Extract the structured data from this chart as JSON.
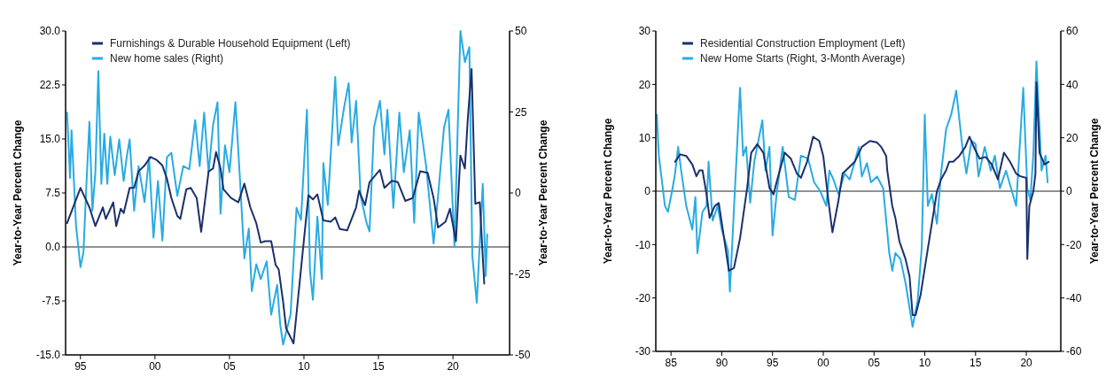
{
  "chart_data": [
    {
      "type": "line",
      "ylabel": "Year-to-Year Percent Change",
      "y2label": "Year-to-Year Percent Change",
      "legend": "top left",
      "grid": false,
      "xlim": [
        1994,
        2023.8
      ],
      "xticks": [
        {
          "value": 1995,
          "label": "95"
        },
        {
          "value": 2000,
          "label": "00"
        },
        {
          "value": 2005,
          "label": "05"
        },
        {
          "value": 2010,
          "label": "10"
        },
        {
          "value": 2015,
          "label": "15"
        },
        {
          "value": 2020,
          "label": "20"
        }
      ],
      "ylim": [
        -15,
        30
      ],
      "yticks": [
        {
          "value": -15,
          "label": "-15.0"
        },
        {
          "value": -7.5,
          "label": "-7.5"
        },
        {
          "value": 0,
          "label": "0.0"
        },
        {
          "value": 7.5,
          "label": "7.5"
        },
        {
          "value": 15,
          "label": "15.0"
        },
        {
          "value": 22.5,
          "label": "22.5"
        },
        {
          "value": 30,
          "label": "30.0"
        }
      ],
      "y2lim": [
        -50,
        50
      ],
      "y2ticks": [
        -50,
        -25,
        0,
        25,
        50
      ],
      "ref_lines": [
        {
          "axis": "y",
          "value": 0,
          "color": "#222222"
        }
      ],
      "series": [
        {
          "name": "New home sales (Right)",
          "color": "#29abe2",
          "axis": "y2",
          "x": [
            1994.1,
            1994.3,
            1994.4,
            1994.7,
            1995.0,
            1995.2,
            1995.4,
            1995.6,
            1995.8,
            1996.0,
            1996.2,
            1996.4,
            1996.6,
            1996.8,
            1997.0,
            1997.3,
            1997.6,
            1997.9,
            1998.1,
            1998.3,
            1998.6,
            1998.9,
            1999.3,
            1999.6,
            1999.9,
            2000.2,
            2000.5,
            2000.8,
            2001.1,
            2001.5,
            2001.9,
            2002.3,
            2002.7,
            2003.0,
            2003.3,
            2003.6,
            2003.9,
            2004.2,
            2004.4,
            2004.7,
            2005.0,
            2005.4,
            2005.7,
            2006.0,
            2006.3,
            2006.5,
            2006.8,
            2007.1,
            2007.5,
            2007.8,
            2008.2,
            2008.4,
            2008.6,
            2009.1,
            2009.5,
            2009.8,
            2010.2,
            2010.4,
            2010.6,
            2010.9,
            2011.2,
            2011.3,
            2011.6,
            2012.1,
            2012.3,
            2012.7,
            2013.0,
            2013.2,
            2013.5,
            2013.8,
            2014.2,
            2014.4,
            2014.7,
            2015.1,
            2015.4,
            2015.6,
            2016.0,
            2016.4,
            2016.7,
            2017.1,
            2017.4,
            2017.7,
            2018.2,
            2018.7,
            2019.0,
            2019.4,
            2019.7,
            2020.1,
            2020.5,
            2020.8,
            2021.1,
            2021.3,
            2021.6,
            2022.0,
            2022.2,
            2022.3
          ],
          "values": [
            24.8,
            4.6,
            19.3,
            -10,
            -22.9,
            -18.3,
            2.8,
            22,
            -5.5,
            6.4,
            37.6,
            2.8,
            18.3,
            2.8,
            17.4,
            5.5,
            16.5,
            3.7,
            11,
            16.5,
            -5.5,
            8.3,
            -2.8,
            11,
            -13.8,
            3.7,
            -14.7,
            11,
            12.4,
            -0.9,
            8.3,
            7.3,
            22.5,
            8.3,
            24.8,
            6.4,
            21.1,
            28,
            -6.4,
            14.7,
            6.4,
            28,
            4.6,
            -20.2,
            -11,
            -30.3,
            -22,
            -26.6,
            -21.1,
            -37.6,
            -28.4,
            -40.4,
            -46.8,
            -37.6,
            -4.6,
            -8.3,
            25.7,
            -23.9,
            -33,
            -7.3,
            -26.6,
            9.2,
            -3.7,
            35.8,
            14.7,
            26.6,
            33.9,
            15.6,
            28.4,
            -0.9,
            -9.2,
            -11.9,
            20.2,
            28.4,
            11.9,
            25.7,
            -4.6,
            24.8,
            6.4,
            19.3,
            -9.2,
            24.8,
            8.3,
            -15.6,
            -0.9,
            20.2,
            25.7,
            -16.5,
            50,
            40.4,
            45,
            -19.3,
            -33.9,
            2.8,
            -25.7,
            -12.8
          ]
        },
        {
          "name": "Furnishings & Durable Household Equipment (Left)",
          "color": "#1b2f6b",
          "x": [
            1994.1,
            1995.0,
            1995.6,
            1996.0,
            1996.5,
            1996.7,
            1997.2,
            1997.4,
            1997.7,
            1997.9,
            1998.3,
            1998.6,
            1998.9,
            1999.3,
            1999.7,
            2000.1,
            2000.5,
            2000.8,
            2001.1,
            2001.5,
            2001.7,
            2002.1,
            2002.4,
            2002.8,
            2003.1,
            2003.6,
            2003.9,
            2004.1,
            2004.4,
            2004.6,
            2005.1,
            2005.6,
            2006.0,
            2006.4,
            2006.8,
            2007.1,
            2007.4,
            2007.8,
            2008.1,
            2008.3,
            2008.6,
            2008.8,
            2009.3,
            2009.8,
            2010.3,
            2010.6,
            2010.9,
            2011.3,
            2011.8,
            2012.1,
            2012.4,
            2012.9,
            2013.5,
            2013.7,
            2014.1,
            2014.4,
            2015.1,
            2015.4,
            2015.9,
            2016.3,
            2016.8,
            2017.3,
            2017.8,
            2018.3,
            2018.7,
            2019.0,
            2019.5,
            2019.8,
            2020.2,
            2020.5,
            2020.8,
            2021.0,
            2021.25,
            2021.5,
            2021.8,
            2022.1
          ],
          "values": [
            3.3,
            8.2,
            5.5,
            2.9,
            5.5,
            3.9,
            6.2,
            2.9,
            5.3,
            4.7,
            8.2,
            8.2,
            10.5,
            11.3,
            12.5,
            12.1,
            11.3,
            9.5,
            6.8,
            4.3,
            3.9,
            8.0,
            8.2,
            6.8,
            2.1,
            10.5,
            10.9,
            13.2,
            10.9,
            8.0,
            6.8,
            6.2,
            8.8,
            5.5,
            3.3,
            0.6,
            0.8,
            0.8,
            -2.5,
            -3.1,
            -7.6,
            -11.3,
            -13.4,
            -3.1,
            7.2,
            6.6,
            7.3,
            3.7,
            3.5,
            4.1,
            2.5,
            2.3,
            5.5,
            7.8,
            5.8,
            9.0,
            10.7,
            8.2,
            9.2,
            9.0,
            6.4,
            6.8,
            10.5,
            10.3,
            6.8,
            2.7,
            3.5,
            5.3,
            0.8,
            12.7,
            10.9,
            17.9,
            24.7,
            6.0,
            6.2,
            -5.1
          ]
        }
      ]
    },
    {
      "type": "line",
      "ylabel": "Year-to-Year Percent Change",
      "y2label": "Year-to-Year Percent Change",
      "legend": "top left",
      "grid": false,
      "xlim": [
        1983.5,
        2023.4
      ],
      "xticks": [
        {
          "value": 1985,
          "label": "85"
        },
        {
          "value": 1990,
          "label": "90"
        },
        {
          "value": 1995,
          "label": "95"
        },
        {
          "value": 2000,
          "label": "00"
        },
        {
          "value": 2005,
          "label": "05"
        },
        {
          "value": 2010,
          "label": "10"
        },
        {
          "value": 2015,
          "label": "15"
        },
        {
          "value": 2020,
          "label": "20"
        }
      ],
      "ylim": [
        -30,
        30
      ],
      "yticks": [
        -30,
        -20,
        -10,
        0,
        10,
        20,
        30
      ],
      "y2lim": [
        -60,
        60
      ],
      "y2ticks": [
        -60,
        -40,
        -20,
        0,
        20,
        40,
        60
      ],
      "ref_lines": [
        {
          "axis": "y",
          "value": 0,
          "color": "#222222"
        }
      ],
      "series": [
        {
          "name": "New Home Starts (Right, 3-Month Average)",
          "color": "#29abe2",
          "axis": "y2",
          "x": [
            1983.6,
            1983.8,
            1984.4,
            1984.7,
            1985.1,
            1985.4,
            1985.7,
            1986.0,
            1986.5,
            1987.1,
            1987.4,
            1987.6,
            1988.1,
            1988.5,
            1988.7,
            1989.1,
            1989.6,
            1990.0,
            1990.6,
            1990.8,
            1991.2,
            1991.8,
            1992.1,
            1992.4,
            1992.8,
            1993.2,
            1994.0,
            1994.3,
            1994.7,
            1995.0,
            1995.4,
            1996.0,
            1996.6,
            1997.2,
            1997.8,
            1998.5,
            1999.1,
            1999.7,
            2000.3,
            2000.6,
            2001.0,
            2001.5,
            2002.1,
            2002.6,
            2003.1,
            2003.5,
            2003.8,
            2004.3,
            2004.7,
            2005.3,
            2005.9,
            2006.5,
            2006.8,
            2007.1,
            2007.6,
            2008.1,
            2008.8,
            2009.3,
            2009.7,
            2010.0,
            2010.3,
            2010.7,
            2011.2,
            2011.6,
            2012.1,
            2012.6,
            2013.1,
            2013.7,
            2014.1,
            2014.6,
            2015.0,
            2015.3,
            2015.9,
            2016.5,
            2016.9,
            2017.4,
            2018.0,
            2018.5,
            2019.0,
            2019.7,
            2020.1,
            2020.4,
            2020.7,
            2021.0,
            2021.5,
            2021.9,
            2022.1
          ],
          "values": [
            28.7,
            13.3,
            -5.5,
            -7.7,
            0,
            6.6,
            16.6,
            7.7,
            -5.5,
            -14.4,
            -2.2,
            -23.2,
            -7.7,
            -5.5,
            11,
            -11,
            -5.5,
            -14.4,
            -22.1,
            -37.6,
            -6.6,
            38.7,
            13.3,
            16.6,
            -4.4,
            11,
            26.5,
            7.7,
            16.6,
            -16.6,
            -1.1,
            16.6,
            -2.2,
            -3.3,
            13.3,
            12.2,
            3.3,
            0,
            -5.5,
            7.7,
            4.4,
            -1.1,
            6.6,
            4.4,
            11,
            16.6,
            5.5,
            10.5,
            3.3,
            5.5,
            1.1,
            -23.2,
            -29.8,
            -23.2,
            -25.4,
            -34.3,
            -50.8,
            -40.9,
            -21,
            28.7,
            -5.5,
            -1.1,
            -12.2,
            6.6,
            23.2,
            28.7,
            37.6,
            16.6,
            6.6,
            18.8,
            17.7,
            5.5,
            16.6,
            7.7,
            13.3,
            1.1,
            7.7,
            1.1,
            -5.5,
            38.7,
            1.1,
            -3.3,
            14.4,
            48.6,
            7.7,
            13.3,
            3.3
          ]
        },
        {
          "name": "Residential Construction Employment (Left)",
          "color": "#1b2f6b",
          "x": [
            1985.4,
            1985.9,
            1986.5,
            1987.1,
            1987.5,
            1987.8,
            1988.1,
            1988.5,
            1988.8,
            1989.3,
            1989.7,
            1990.1,
            1990.7,
            1991.2,
            1991.8,
            1992.5,
            1992.9,
            1993.5,
            1994.1,
            1994.7,
            1995.1,
            1995.4,
            1996.2,
            1996.8,
            1997.4,
            1997.8,
            1998.4,
            1999.0,
            1999.6,
            2000.0,
            2000.5,
            2000.9,
            2001.5,
            2001.9,
            2002.5,
            2003.1,
            2003.8,
            2004.6,
            2005.3,
            2005.7,
            2006.2,
            2006.3,
            2006.8,
            2007.1,
            2007.5,
            2008.1,
            2008.5,
            2008.8,
            2009.1,
            2009.6,
            2010.0,
            2010.6,
            2011.2,
            2011.6,
            2012.1,
            2012.4,
            2012.8,
            2013.4,
            2014.0,
            2014.4,
            2014.9,
            2015.4,
            2016.0,
            2016.6,
            2017.2,
            2017.8,
            2018.4,
            2019.0,
            2019.4,
            2020.0,
            2020.1,
            2020.3,
            2020.7,
            2020.9,
            2021.0,
            2021.3,
            2021.8,
            2022.2
          ],
          "values": [
            5.5,
            6.9,
            6.6,
            5.0,
            2.8,
            3.9,
            3.9,
            -0.6,
            -5,
            -2.8,
            -2.2,
            -7.2,
            -14.9,
            -14.4,
            -8.8,
            0.6,
            7.2,
            8.8,
            7.2,
            0.6,
            -0.6,
            1.7,
            7.2,
            6.1,
            3.3,
            2.5,
            5.5,
            10.2,
            9.4,
            6.6,
            -1.7,
            -7.7,
            -1.7,
            3.3,
            4.4,
            5.5,
            8.3,
            9.4,
            9.1,
            8.3,
            6.6,
            3.9,
            -2.8,
            -5,
            -9.4,
            -12.7,
            -16,
            -23.2,
            -23.2,
            -19.3,
            -14.4,
            -7.2,
            0,
            2.2,
            3.9,
            5.5,
            5.5,
            6.6,
            8.3,
            10.2,
            8.0,
            6.1,
            6.4,
            5.0,
            2.2,
            7.2,
            5.5,
            3.3,
            2.8,
            2.5,
            -12.7,
            -2.8,
            0,
            3.3,
            20.4,
            7.2,
            5.0,
            5.5
          ]
        }
      ]
    }
  ]
}
